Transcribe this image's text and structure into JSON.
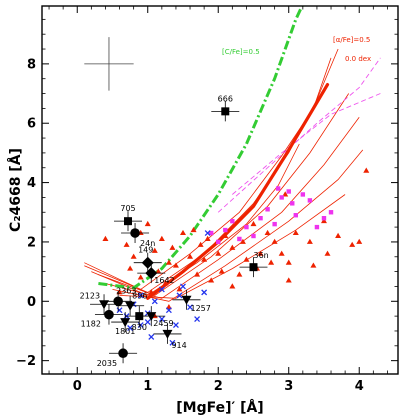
{
  "chart_data": {
    "type": "scatter",
    "xlabel": "[MgFe]′ [Å]",
    "ylabel": "C₂4668 [Å]",
    "xlim": [
      -0.5,
      4.55
    ],
    "ylim": [
      -2.45,
      9.95
    ],
    "x_ticks": [
      "0",
      "1",
      "2",
      "3",
      "4"
    ],
    "y_ticks": [
      "−2",
      "0",
      "2",
      "4",
      "6",
      "8"
    ],
    "x_tick_values": [
      0,
      1,
      2,
      3,
      4
    ],
    "y_tick_values": [
      -2,
      0,
      2,
      4,
      6,
      8
    ],
    "colors": {
      "frame": "#000000",
      "green_model": "#33cc33",
      "red_model": "#ee2200",
      "pink_model": "#ee55ee",
      "blue": "#2233ee",
      "magenta": "#ee33ee",
      "red_points": "#ee2200"
    },
    "annotations": {
      "green_model": "[C/Fe]=0.5",
      "red_model": "[α/Fe]=0.5",
      "red_model_sub": "0.0 dex"
    },
    "typical_error": {
      "x": 0.45,
      "y": 8.0,
      "xerr": 0.35,
      "yerr": 0.9
    },
    "green_model": [
      [
        0.3,
        0.6
      ],
      [
        0.8,
        0.45
      ],
      [
        1.2,
        1.1
      ],
      [
        1.6,
        2.2
      ],
      [
        2.0,
        3.6
      ],
      [
        2.4,
        5.3
      ],
      [
        2.8,
        7.5
      ],
      [
        3.1,
        9.5
      ],
      [
        3.22,
        10.1
      ]
    ],
    "red_thick": [
      [
        1.0,
        0.1
      ],
      [
        1.5,
        1.0
      ],
      [
        2.0,
        2.0
      ],
      [
        2.5,
        3.2
      ],
      [
        2.95,
        4.9
      ],
      [
        3.3,
        6.3
      ],
      [
        3.55,
        7.3
      ]
    ],
    "red_fans": [
      [
        [
          0.1,
          1.3
        ],
        [
          0.9,
          0.4
        ],
        [
          1.6,
          1.6
        ],
        [
          2.3,
          3.0
        ],
        [
          2.9,
          4.9
        ],
        [
          3.35,
          6.5
        ],
        [
          3.6,
          8.2
        ]
      ],
      [
        [
          0.1,
          1.2
        ],
        [
          1.0,
          0.3
        ],
        [
          1.8,
          1.6
        ],
        [
          2.5,
          3.3
        ],
        [
          3.0,
          5.0
        ],
        [
          3.4,
          6.8
        ],
        [
          3.7,
          8.5
        ]
      ],
      [
        [
          0.3,
          0.9
        ],
        [
          1.1,
          0.2
        ],
        [
          1.9,
          1.5
        ],
        [
          2.7,
          3.2
        ],
        [
          3.3,
          5.0
        ],
        [
          3.85,
          7.0
        ]
      ],
      [
        [
          0.4,
          0.6
        ],
        [
          1.2,
          0.1
        ],
        [
          2.0,
          1.4
        ],
        [
          2.9,
          3.0
        ],
        [
          3.5,
          4.6
        ],
        [
          4.0,
          6.2
        ]
      ],
      [
        [
          0.5,
          0.4
        ],
        [
          1.3,
          0.0
        ],
        [
          2.1,
          1.2
        ],
        [
          3.0,
          2.7
        ],
        [
          3.7,
          4.1
        ],
        [
          4.05,
          5.1
        ]
      ],
      [
        [
          0.6,
          0.2
        ],
        [
          1.4,
          0.1
        ],
        [
          2.2,
          1.1
        ],
        [
          3.1,
          2.4
        ],
        [
          3.8,
          3.6
        ]
      ],
      [
        [
          0.2,
          1.0
        ],
        [
          1.0,
          0.2
        ],
        [
          1.7,
          1.3
        ],
        [
          2.4,
          2.6
        ],
        [
          2.85,
          3.9
        ],
        [
          3.15,
          5.3
        ]
      ]
    ],
    "pink_model": [
      [
        [
          2.0,
          3.0
        ],
        [
          2.7,
          4.5
        ],
        [
          3.4,
          6.0
        ],
        [
          4.0,
          7.2
        ],
        [
          4.3,
          8.2
        ]
      ],
      [
        [
          2.2,
          3.6
        ],
        [
          2.9,
          5.0
        ],
        [
          3.6,
          6.3
        ],
        [
          4.3,
          7.0
        ]
      ]
    ],
    "red_points": [
      [
        0.4,
        2.1
      ],
      [
        0.6,
        0.3
      ],
      [
        0.7,
        1.9
      ],
      [
        0.75,
        1.1
      ],
      [
        0.8,
        1.5
      ],
      [
        0.9,
        2.3
      ],
      [
        0.9,
        0.8
      ],
      [
        1.0,
        2.6
      ],
      [
        1.05,
        0.3
      ],
      [
        1.1,
        1.7
      ],
      [
        1.15,
        1.0
      ],
      [
        1.2,
        2.1
      ],
      [
        1.25,
        0.6
      ],
      [
        1.3,
        1.3
      ],
      [
        1.35,
        1.8
      ],
      [
        1.4,
        1.2
      ],
      [
        1.45,
        0.4
      ],
      [
        1.5,
        2.3
      ],
      [
        1.6,
        1.5
      ],
      [
        1.65,
        2.4
      ],
      [
        1.7,
        0.9
      ],
      [
        1.75,
        1.9
      ],
      [
        1.8,
        1.4
      ],
      [
        1.85,
        2.1
      ],
      [
        1.9,
        0.7
      ],
      [
        2.0,
        1.6
      ],
      [
        2.05,
        1.0
      ],
      [
        2.1,
        2.2
      ],
      [
        2.2,
        1.8
      ],
      [
        2.3,
        0.9
      ],
      [
        2.35,
        2.0
      ],
      [
        2.4,
        1.4
      ],
      [
        2.5,
        2.6
      ],
      [
        2.55,
        1.1
      ],
      [
        2.6,
        1.6
      ],
      [
        2.7,
        2.3
      ],
      [
        2.75,
        1.3
      ],
      [
        2.8,
        2.0
      ],
      [
        2.9,
        1.6
      ],
      [
        2.95,
        3.6
      ],
      [
        3.0,
        1.3
      ],
      [
        3.1,
        2.3
      ],
      [
        3.3,
        2.0
      ],
      [
        3.35,
        1.2
      ],
      [
        3.5,
        2.7
      ],
      [
        3.55,
        1.6
      ],
      [
        3.7,
        2.2
      ],
      [
        3.9,
        1.9
      ],
      [
        4.0,
        2.0
      ],
      [
        4.1,
        4.4
      ],
      [
        3.0,
        0.7
      ],
      [
        2.2,
        0.5
      ],
      [
        1.3,
        -0.2
      ],
      [
        1.1,
        -0.5
      ]
    ],
    "magenta_points": [
      [
        2.1,
        2.4
      ],
      [
        2.2,
        2.7
      ],
      [
        2.3,
        2.1
      ],
      [
        2.4,
        2.5
      ],
      [
        2.5,
        2.2
      ],
      [
        2.6,
        2.8
      ],
      [
        2.7,
        3.1
      ],
      [
        2.8,
        2.6
      ],
      [
        2.85,
        3.8
      ],
      [
        2.9,
        3.5
      ],
      [
        3.0,
        3.7
      ],
      [
        3.05,
        3.3
      ],
      [
        3.1,
        2.9
      ],
      [
        3.2,
        3.6
      ],
      [
        3.3,
        3.4
      ],
      [
        3.4,
        2.5
      ],
      [
        3.5,
        2.8
      ],
      [
        3.6,
        3.0
      ],
      [
        2.0,
        2.0
      ],
      [
        1.9,
        2.3
      ]
    ],
    "blue_points": [
      [
        0.6,
        -0.3
      ],
      [
        0.7,
        -0.5
      ],
      [
        0.8,
        -0.1
      ],
      [
        0.9,
        -0.8
      ],
      [
        1.0,
        -0.4
      ],
      [
        1.05,
        -1.2
      ],
      [
        1.1,
        0.0
      ],
      [
        1.2,
        -0.6
      ],
      [
        1.3,
        -0.3
      ],
      [
        1.35,
        -1.4
      ],
      [
        1.4,
        -0.8
      ],
      [
        1.5,
        0.5
      ],
      [
        1.6,
        -0.2
      ],
      [
        1.7,
        -0.6
      ],
      [
        1.8,
        0.3
      ],
      [
        0.9,
        0.2
      ],
      [
        1.2,
        0.4
      ],
      [
        1.45,
        0.2
      ],
      [
        1.85,
        2.3
      ],
      [
        1.0,
        -0.7
      ],
      [
        0.75,
        -0.9
      ]
    ],
    "labeled_points": [
      {
        "id": "666",
        "x": 2.1,
        "y": 6.4,
        "marker": "square"
      },
      {
        "id": "705",
        "x": 0.72,
        "y": 2.7,
        "marker": "square"
      },
      {
        "id": "24n",
        "x": 0.82,
        "y": 2.3,
        "marker": "circle"
      },
      {
        "id": "149",
        "x": 1.0,
        "y": 1.3,
        "marker": "diamond"
      },
      {
        "id": "1642",
        "x": 1.05,
        "y": 0.95,
        "marker": "diamond"
      },
      {
        "id": "36n",
        "x": 2.5,
        "y": 1.15,
        "marker": "square"
      },
      {
        "id": "2123",
        "x": 0.38,
        "y": -0.1,
        "marker": "triangle_down"
      },
      {
        "id": "2363",
        "x": 0.58,
        "y": 0.0,
        "marker": "circle"
      },
      {
        "id": "896",
        "x": 0.75,
        "y": -0.15,
        "marker": "triangle_down"
      },
      {
        "id": "1182",
        "x": 0.45,
        "y": -0.45,
        "marker": "circle"
      },
      {
        "id": "1801",
        "x": 0.68,
        "y": -0.7,
        "marker": "triangle_down"
      },
      {
        "id": "830",
        "x": 0.88,
        "y": -0.5,
        "marker": "square"
      },
      {
        "id": "2459",
        "x": 1.05,
        "y": -0.5,
        "marker": "triangle_down"
      },
      {
        "id": "1257",
        "x": 1.55,
        "y": 0.05,
        "marker": "triangle_down"
      },
      {
        "id": "914",
        "x": 1.28,
        "y": -1.1,
        "marker": "triangle_down"
      },
      {
        "id": "2035",
        "x": 0.65,
        "y": -1.75,
        "marker": "circle"
      }
    ]
  }
}
